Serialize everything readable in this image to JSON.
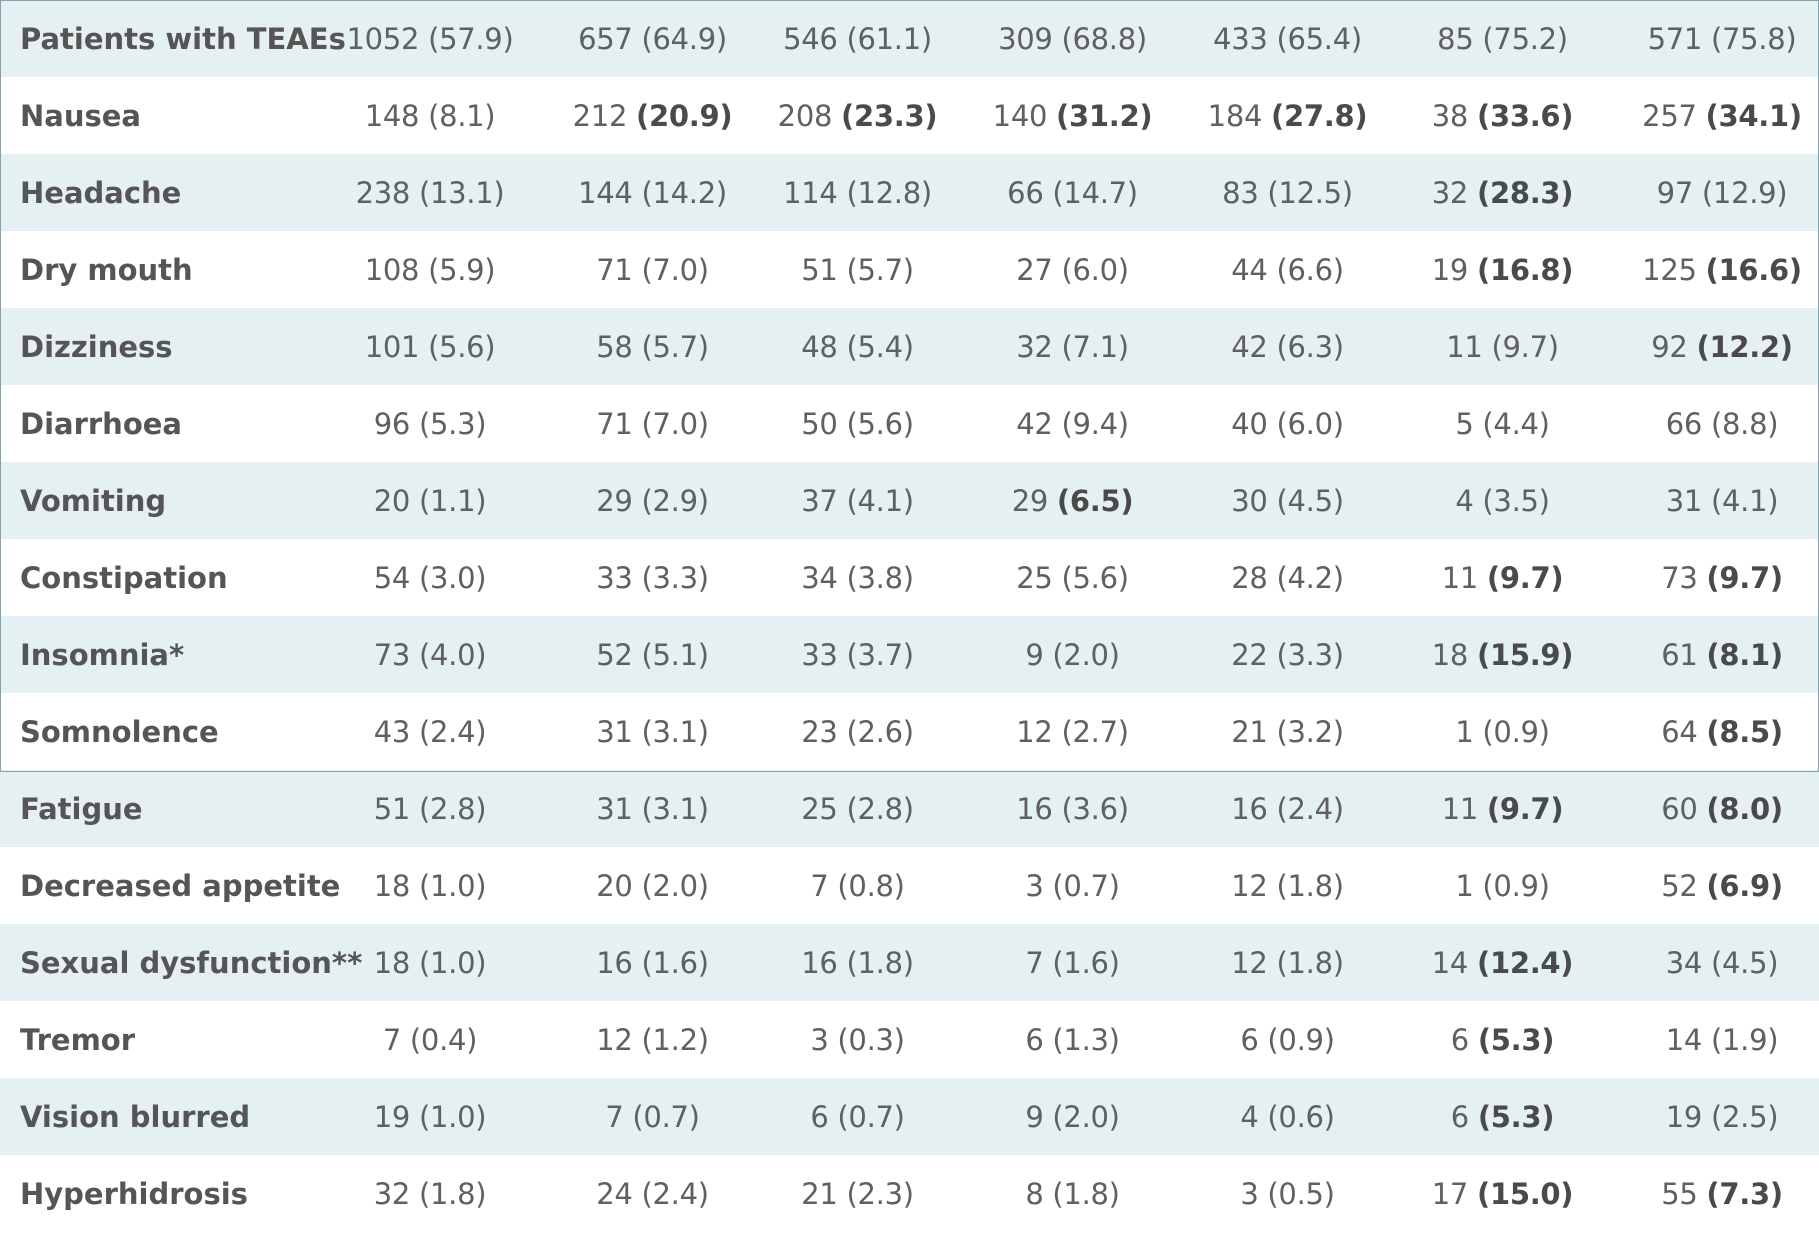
{
  "rows": [
    {
      "label": "Patients with TEAEs",
      "cells": [
        {
          "n": "1052",
          "pct": "(57.9)",
          "bold": false
        },
        {
          "n": "657",
          "pct": "(64.9)",
          "bold": false
        },
        {
          "n": "546",
          "pct": "(61.1)",
          "bold": false
        },
        {
          "n": "309",
          "pct": "(68.8)",
          "bold": false
        },
        {
          "n": "433",
          "pct": "(65.4)",
          "bold": false
        },
        {
          "n": "85",
          "pct": "(75.2)",
          "bold": false
        },
        {
          "n": "571",
          "pct": "(75.8)",
          "bold": false
        }
      ]
    },
    {
      "label": "Nausea",
      "cells": [
        {
          "n": "148",
          "pct": "(8.1)",
          "bold": false
        },
        {
          "n": "212",
          "pct": "(20.9)",
          "bold": true
        },
        {
          "n": "208",
          "pct": "(23.3)",
          "bold": true
        },
        {
          "n": "140",
          "pct": "(31.2)",
          "bold": true
        },
        {
          "n": "184",
          "pct": "(27.8)",
          "bold": true
        },
        {
          "n": "38",
          "pct": "(33.6)",
          "bold": true
        },
        {
          "n": "257",
          "pct": "(34.1)",
          "bold": true
        }
      ]
    },
    {
      "label": "Headache",
      "cells": [
        {
          "n": "238",
          "pct": "(13.1)",
          "bold": false
        },
        {
          "n": "144",
          "pct": "(14.2)",
          "bold": false
        },
        {
          "n": "114",
          "pct": "(12.8)",
          "bold": false
        },
        {
          "n": "66",
          "pct": "(14.7)",
          "bold": false
        },
        {
          "n": "83",
          "pct": "(12.5)",
          "bold": false
        },
        {
          "n": "32",
          "pct": "(28.3)",
          "bold": true
        },
        {
          "n": "97",
          "pct": "(12.9)",
          "bold": false
        }
      ]
    },
    {
      "label": "Dry mouth",
      "cells": [
        {
          "n": "108",
          "pct": "(5.9)",
          "bold": false
        },
        {
          "n": "71",
          "pct": "(7.0)",
          "bold": false
        },
        {
          "n": "51",
          "pct": "(5.7)",
          "bold": false
        },
        {
          "n": "27",
          "pct": "(6.0)",
          "bold": false
        },
        {
          "n": "44",
          "pct": "(6.6)",
          "bold": false
        },
        {
          "n": "19",
          "pct": "(16.8)",
          "bold": true
        },
        {
          "n": "125",
          "pct": "(16.6)",
          "bold": true
        }
      ]
    },
    {
      "label": "Dizziness",
      "cells": [
        {
          "n": "101",
          "pct": "(5.6)",
          "bold": false
        },
        {
          "n": "58",
          "pct": "(5.7)",
          "bold": false
        },
        {
          "n": "48",
          "pct": "(5.4)",
          "bold": false
        },
        {
          "n": "32",
          "pct": "(7.1)",
          "bold": false
        },
        {
          "n": "42",
          "pct": "(6.3)",
          "bold": false
        },
        {
          "n": "11",
          "pct": "(9.7)",
          "bold": false
        },
        {
          "n": "92",
          "pct": "(12.2)",
          "bold": true
        }
      ]
    },
    {
      "label": "Diarrhoea",
      "cells": [
        {
          "n": "96",
          "pct": "(5.3)",
          "bold": false
        },
        {
          "n": "71",
          "pct": "(7.0)",
          "bold": false
        },
        {
          "n": "50",
          "pct": "(5.6)",
          "bold": false
        },
        {
          "n": "42",
          "pct": "(9.4)",
          "bold": false
        },
        {
          "n": "40",
          "pct": "(6.0)",
          "bold": false
        },
        {
          "n": "5",
          "pct": "(4.4)",
          "bold": false
        },
        {
          "n": "66",
          "pct": "(8.8)",
          "bold": false
        }
      ]
    },
    {
      "label": "Vomiting",
      "cells": [
        {
          "n": "20",
          "pct": "(1.1)",
          "bold": false
        },
        {
          "n": "29",
          "pct": "(2.9)",
          "bold": false
        },
        {
          "n": "37",
          "pct": "(4.1)",
          "bold": false
        },
        {
          "n": "29",
          "pct": "(6.5)",
          "bold": true
        },
        {
          "n": "30",
          "pct": "(4.5)",
          "bold": false
        },
        {
          "n": "4",
          "pct": "(3.5)",
          "bold": false
        },
        {
          "n": "31",
          "pct": "(4.1)",
          "bold": false
        }
      ]
    },
    {
      "label": "Constipation",
      "cells": [
        {
          "n": "54",
          "pct": "(3.0)",
          "bold": false
        },
        {
          "n": "33",
          "pct": "(3.3)",
          "bold": false
        },
        {
          "n": "34",
          "pct": "(3.8)",
          "bold": false
        },
        {
          "n": "25",
          "pct": "(5.6)",
          "bold": false
        },
        {
          "n": "28",
          "pct": "(4.2)",
          "bold": false
        },
        {
          "n": "11",
          "pct": "(9.7)",
          "bold": true
        },
        {
          "n": "73",
          "pct": "(9.7)",
          "bold": true
        }
      ]
    },
    {
      "label": "Insomnia*",
      "cells": [
        {
          "n": "73",
          "pct": "(4.0)",
          "bold": false
        },
        {
          "n": "52",
          "pct": "(5.1)",
          "bold": false
        },
        {
          "n": "33",
          "pct": "(3.7)",
          "bold": false
        },
        {
          "n": "9",
          "pct": "(2.0)",
          "bold": false
        },
        {
          "n": "22",
          "pct": "(3.3)",
          "bold": false
        },
        {
          "n": "18",
          "pct": "(15.9)",
          "bold": true
        },
        {
          "n": "61",
          "pct": "(8.1)",
          "bold": true
        }
      ]
    },
    {
      "label": "Somnolence",
      "cells": [
        {
          "n": "43",
          "pct": "(2.4)",
          "bold": false
        },
        {
          "n": "31",
          "pct": "(3.1)",
          "bold": false
        },
        {
          "n": "23",
          "pct": "(2.6)",
          "bold": false
        },
        {
          "n": "12",
          "pct": "(2.7)",
          "bold": false
        },
        {
          "n": "21",
          "pct": "(3.2)",
          "bold": false
        },
        {
          "n": "1",
          "pct": "(0.9)",
          "bold": false
        },
        {
          "n": "64",
          "pct": "(8.5)",
          "bold": true
        }
      ]
    },
    {
      "label": "Fatigue",
      "cells": [
        {
          "n": "51",
          "pct": "(2.8)",
          "bold": false
        },
        {
          "n": "31",
          "pct": "(3.1)",
          "bold": false
        },
        {
          "n": "25",
          "pct": "(2.8)",
          "bold": false
        },
        {
          "n": "16",
          "pct": "(3.6)",
          "bold": false
        },
        {
          "n": "16",
          "pct": "(2.4)",
          "bold": false
        },
        {
          "n": "11",
          "pct": "(9.7)",
          "bold": true
        },
        {
          "n": "60",
          "pct": "(8.0)",
          "bold": true
        }
      ]
    },
    {
      "label": "Decreased appetite",
      "cells": [
        {
          "n": "18",
          "pct": "(1.0)",
          "bold": false
        },
        {
          "n": "20",
          "pct": "(2.0)",
          "bold": false
        },
        {
          "n": "7",
          "pct": "(0.8)",
          "bold": false
        },
        {
          "n": "3",
          "pct": "(0.7)",
          "bold": false
        },
        {
          "n": "12",
          "pct": "(1.8)",
          "bold": false
        },
        {
          "n": "1",
          "pct": "(0.9)",
          "bold": false
        },
        {
          "n": "52",
          "pct": "(6.9)",
          "bold": true
        }
      ]
    },
    {
      "label": "Sexual dysfunction**",
      "cells": [
        {
          "n": "18",
          "pct": "(1.0)",
          "bold": false
        },
        {
          "n": "16",
          "pct": "(1.6)",
          "bold": false
        },
        {
          "n": "16",
          "pct": "(1.8)",
          "bold": false
        },
        {
          "n": "7",
          "pct": "(1.6)",
          "bold": false
        },
        {
          "n": "12",
          "pct": "(1.8)",
          "bold": false
        },
        {
          "n": "14",
          "pct": "(12.4)",
          "bold": true
        },
        {
          "n": "34",
          "pct": "(4.5)",
          "bold": false
        }
      ]
    },
    {
      "label": "Tremor",
      "cells": [
        {
          "n": "7",
          "pct": "(0.4)",
          "bold": false
        },
        {
          "n": "12",
          "pct": "(1.2)",
          "bold": false
        },
        {
          "n": "3",
          "pct": "(0.3)",
          "bold": false
        },
        {
          "n": "6",
          "pct": "(1.3)",
          "bold": false
        },
        {
          "n": "6",
          "pct": "(0.9)",
          "bold": false
        },
        {
          "n": "6",
          "pct": "(5.3)",
          "bold": true
        },
        {
          "n": "14",
          "pct": "(1.9)",
          "bold": false
        }
      ]
    },
    {
      "label": "Vision blurred",
      "cells": [
        {
          "n": "19",
          "pct": "(1.0)",
          "bold": false
        },
        {
          "n": "7",
          "pct": "(0.7)",
          "bold": false
        },
        {
          "n": "6",
          "pct": "(0.7)",
          "bold": false
        },
        {
          "n": "9",
          "pct": "(2.0)",
          "bold": false
        },
        {
          "n": "4",
          "pct": "(0.6)",
          "bold": false
        },
        {
          "n": "6",
          "pct": "(5.3)",
          "bold": true
        },
        {
          "n": "19",
          "pct": "(2.5)",
          "bold": false
        }
      ]
    },
    {
      "label": "Hyperhidrosis",
      "cells": [
        {
          "n": "32",
          "pct": "(1.8)",
          "bold": false
        },
        {
          "n": "24",
          "pct": "(2.4)",
          "bold": false
        },
        {
          "n": "21",
          "pct": "(2.3)",
          "bold": false
        },
        {
          "n": "8",
          "pct": "(1.8)",
          "bold": false
        },
        {
          "n": "3",
          "pct": "(0.5)",
          "bold": false
        },
        {
          "n": "17",
          "pct": "(15.0)",
          "bold": true
        },
        {
          "n": "55",
          "pct": "(7.3)",
          "bold": true
        }
      ]
    }
  ]
}
